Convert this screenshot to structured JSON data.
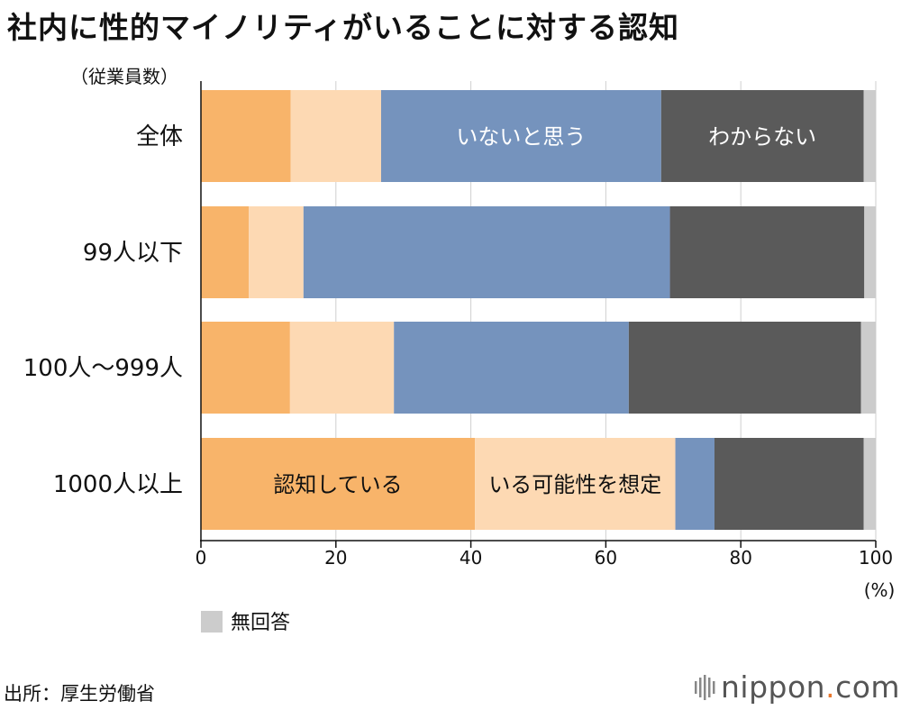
{
  "title": "社内に性的マイノリティがいることに対する認知",
  "source": "出所：厚生労働省",
  "logo": {
    "name": "nippon",
    "dot": ".",
    "suffix": "com"
  },
  "chart_data": {
    "type": "bar",
    "orientation": "horizontal",
    "stacked": true,
    "title": "社内に性的マイノリティがいることに対する認知",
    "category_axis_label": "（従業員数）",
    "value_axis_unit": "(%)",
    "xlim": [
      0,
      100
    ],
    "xticks": [
      0,
      20,
      40,
      60,
      80,
      100
    ],
    "grid": true,
    "categories": [
      "全体",
      "99人以下",
      "100人～999人",
      "1000人以上"
    ],
    "series": [
      {
        "name": "認知している",
        "color": "#f8b46a",
        "values": [
          13.3,
          7.1,
          13.2,
          40.6
        ]
      },
      {
        "name": "いる可能性を想定",
        "color": "#fdd9b3",
        "values": [
          13.4,
          8.1,
          15.4,
          29.7
        ]
      },
      {
        "name": "いないと思う",
        "color": "#7593bd",
        "values": [
          41.5,
          54.3,
          34.8,
          5.8
        ]
      },
      {
        "name": "わからない",
        "color": "#5a5a5a",
        "values": [
          30.0,
          28.8,
          34.4,
          22.1
        ]
      },
      {
        "name": "無回答",
        "color": "#cccccc",
        "values": [
          1.8,
          1.7,
          2.2,
          1.8
        ]
      }
    ],
    "legend": [
      {
        "name": "無回答",
        "color": "#cccccc"
      }
    ],
    "in_bar_labels": [
      {
        "series": 2,
        "category": 0,
        "text": "いないと思う",
        "color": "#ffffff"
      },
      {
        "series": 3,
        "category": 0,
        "text": "わからない",
        "color": "#ffffff"
      },
      {
        "series": 0,
        "category": 3,
        "text": "認知している",
        "color": "#111111"
      },
      {
        "series": 1,
        "category": 3,
        "text": "いる可能性を想定",
        "color": "#111111"
      }
    ]
  }
}
